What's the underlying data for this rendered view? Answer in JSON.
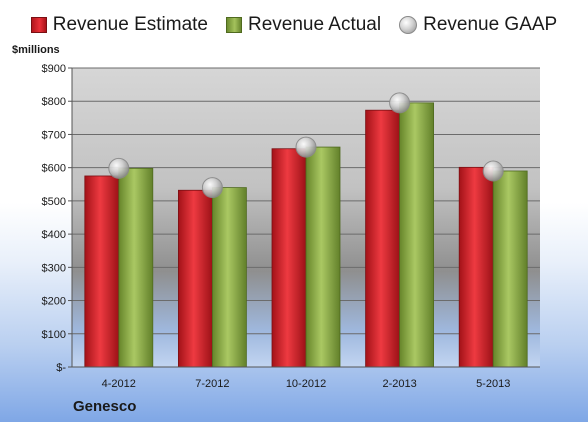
{
  "legend": {
    "estimate_label": "Revenue Estimate",
    "actual_label": "Revenue Actual",
    "gaap_label": "Revenue GAAP"
  },
  "units_label": "$millions",
  "company": "Genesco",
  "colors": {
    "estimate": "#d9232b",
    "actual": "#8fb04a",
    "gaap": "#c8c8c8"
  },
  "chart_data": {
    "type": "bar",
    "categories": [
      "4-2012",
      "7-2012",
      "10-2012",
      "2-2013",
      "5-2013"
    ],
    "series": [
      {
        "name": "Revenue Estimate",
        "values": [
          575,
          532,
          657,
          773,
          601
        ]
      },
      {
        "name": "Revenue Actual",
        "values": [
          598,
          540,
          662,
          795,
          590
        ]
      },
      {
        "name": "Revenue GAAP",
        "values": [
          598,
          540,
          662,
          795,
          590
        ],
        "marker": "sphere"
      }
    ],
    "ylim": [
      0,
      900
    ],
    "y_ticks": [
      0,
      100,
      200,
      300,
      400,
      500,
      600,
      700,
      800,
      900
    ],
    "y_tick_labels": [
      "$-",
      "$100",
      "$200",
      "$300",
      "$400",
      "$500",
      "$600",
      "$700",
      "$800",
      "$900"
    ],
    "ylabel": "$millions",
    "xlabel": "",
    "grid": true,
    "legend_position": "top"
  }
}
